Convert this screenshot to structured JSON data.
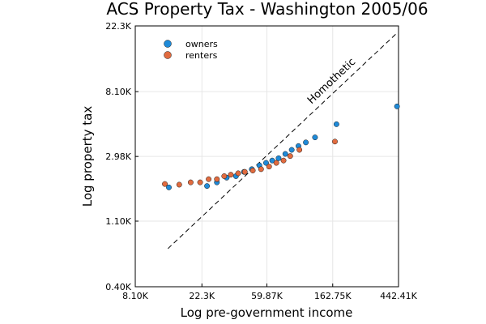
{
  "chart_data": {
    "type": "scatter",
    "title": "ACS Property Tax - Washington 2005/06",
    "xlabel": "Log pre-government income",
    "ylabel": "Log property tax",
    "x_scale": "log",
    "y_scale": "log",
    "xlim": [
      8100,
      442410
    ],
    "ylim": [
      400,
      22300
    ],
    "x_ticks": [
      {
        "value": 8100,
        "label": "8.10K"
      },
      {
        "value": 22300,
        "label": "22.3K"
      },
      {
        "value": 59870,
        "label": "59.87K"
      },
      {
        "value": 162750,
        "label": "162.75K"
      },
      {
        "value": 442410,
        "label": "442.41K"
      }
    ],
    "y_ticks": [
      {
        "value": 400,
        "label": "0.40K"
      },
      {
        "value": 1100,
        "label": "1.10K"
      },
      {
        "value": 2980,
        "label": "2.98K"
      },
      {
        "value": 8100,
        "label": "8.10K"
      },
      {
        "value": 22300,
        "label": "22.3K"
      }
    ],
    "grid": true,
    "legend_position": "top-left",
    "series": [
      {
        "name": "owners",
        "color": "#1f8ad8",
        "points": [
          [
            13500,
            1850
          ],
          [
            24100,
            1890
          ],
          [
            28000,
            2000
          ],
          [
            32500,
            2150
          ],
          [
            37400,
            2200
          ],
          [
            42300,
            2350
          ],
          [
            47600,
            2450
          ],
          [
            53400,
            2600
          ],
          [
            59100,
            2700
          ],
          [
            64900,
            2800
          ],
          [
            71500,
            2900
          ],
          [
            79200,
            3100
          ],
          [
            87300,
            3300
          ],
          [
            96700,
            3500
          ],
          [
            108200,
            3700
          ],
          [
            124400,
            4000
          ],
          [
            172300,
            4900
          ],
          [
            432400,
            6450
          ]
        ]
      },
      {
        "name": "renters",
        "color": "#e16b3f",
        "points": [
          [
            12700,
            1950
          ],
          [
            15800,
            1930
          ],
          [
            18800,
            2000
          ],
          [
            21700,
            2000
          ],
          [
            24700,
            2100
          ],
          [
            28000,
            2100
          ],
          [
            31300,
            2200
          ],
          [
            34600,
            2250
          ],
          [
            38700,
            2300
          ],
          [
            42800,
            2350
          ],
          [
            48300,
            2400
          ],
          [
            54800,
            2450
          ],
          [
            61900,
            2550
          ],
          [
            69100,
            2700
          ],
          [
            77100,
            2800
          ],
          [
            85300,
            3000
          ],
          [
            98100,
            3300
          ],
          [
            168300,
            3750
          ]
        ]
      }
    ],
    "reference_line": {
      "label": "Homothetic",
      "style": "dashed",
      "x": [
        13300,
        432400
      ],
      "y": [
        720,
        20000
      ]
    }
  }
}
